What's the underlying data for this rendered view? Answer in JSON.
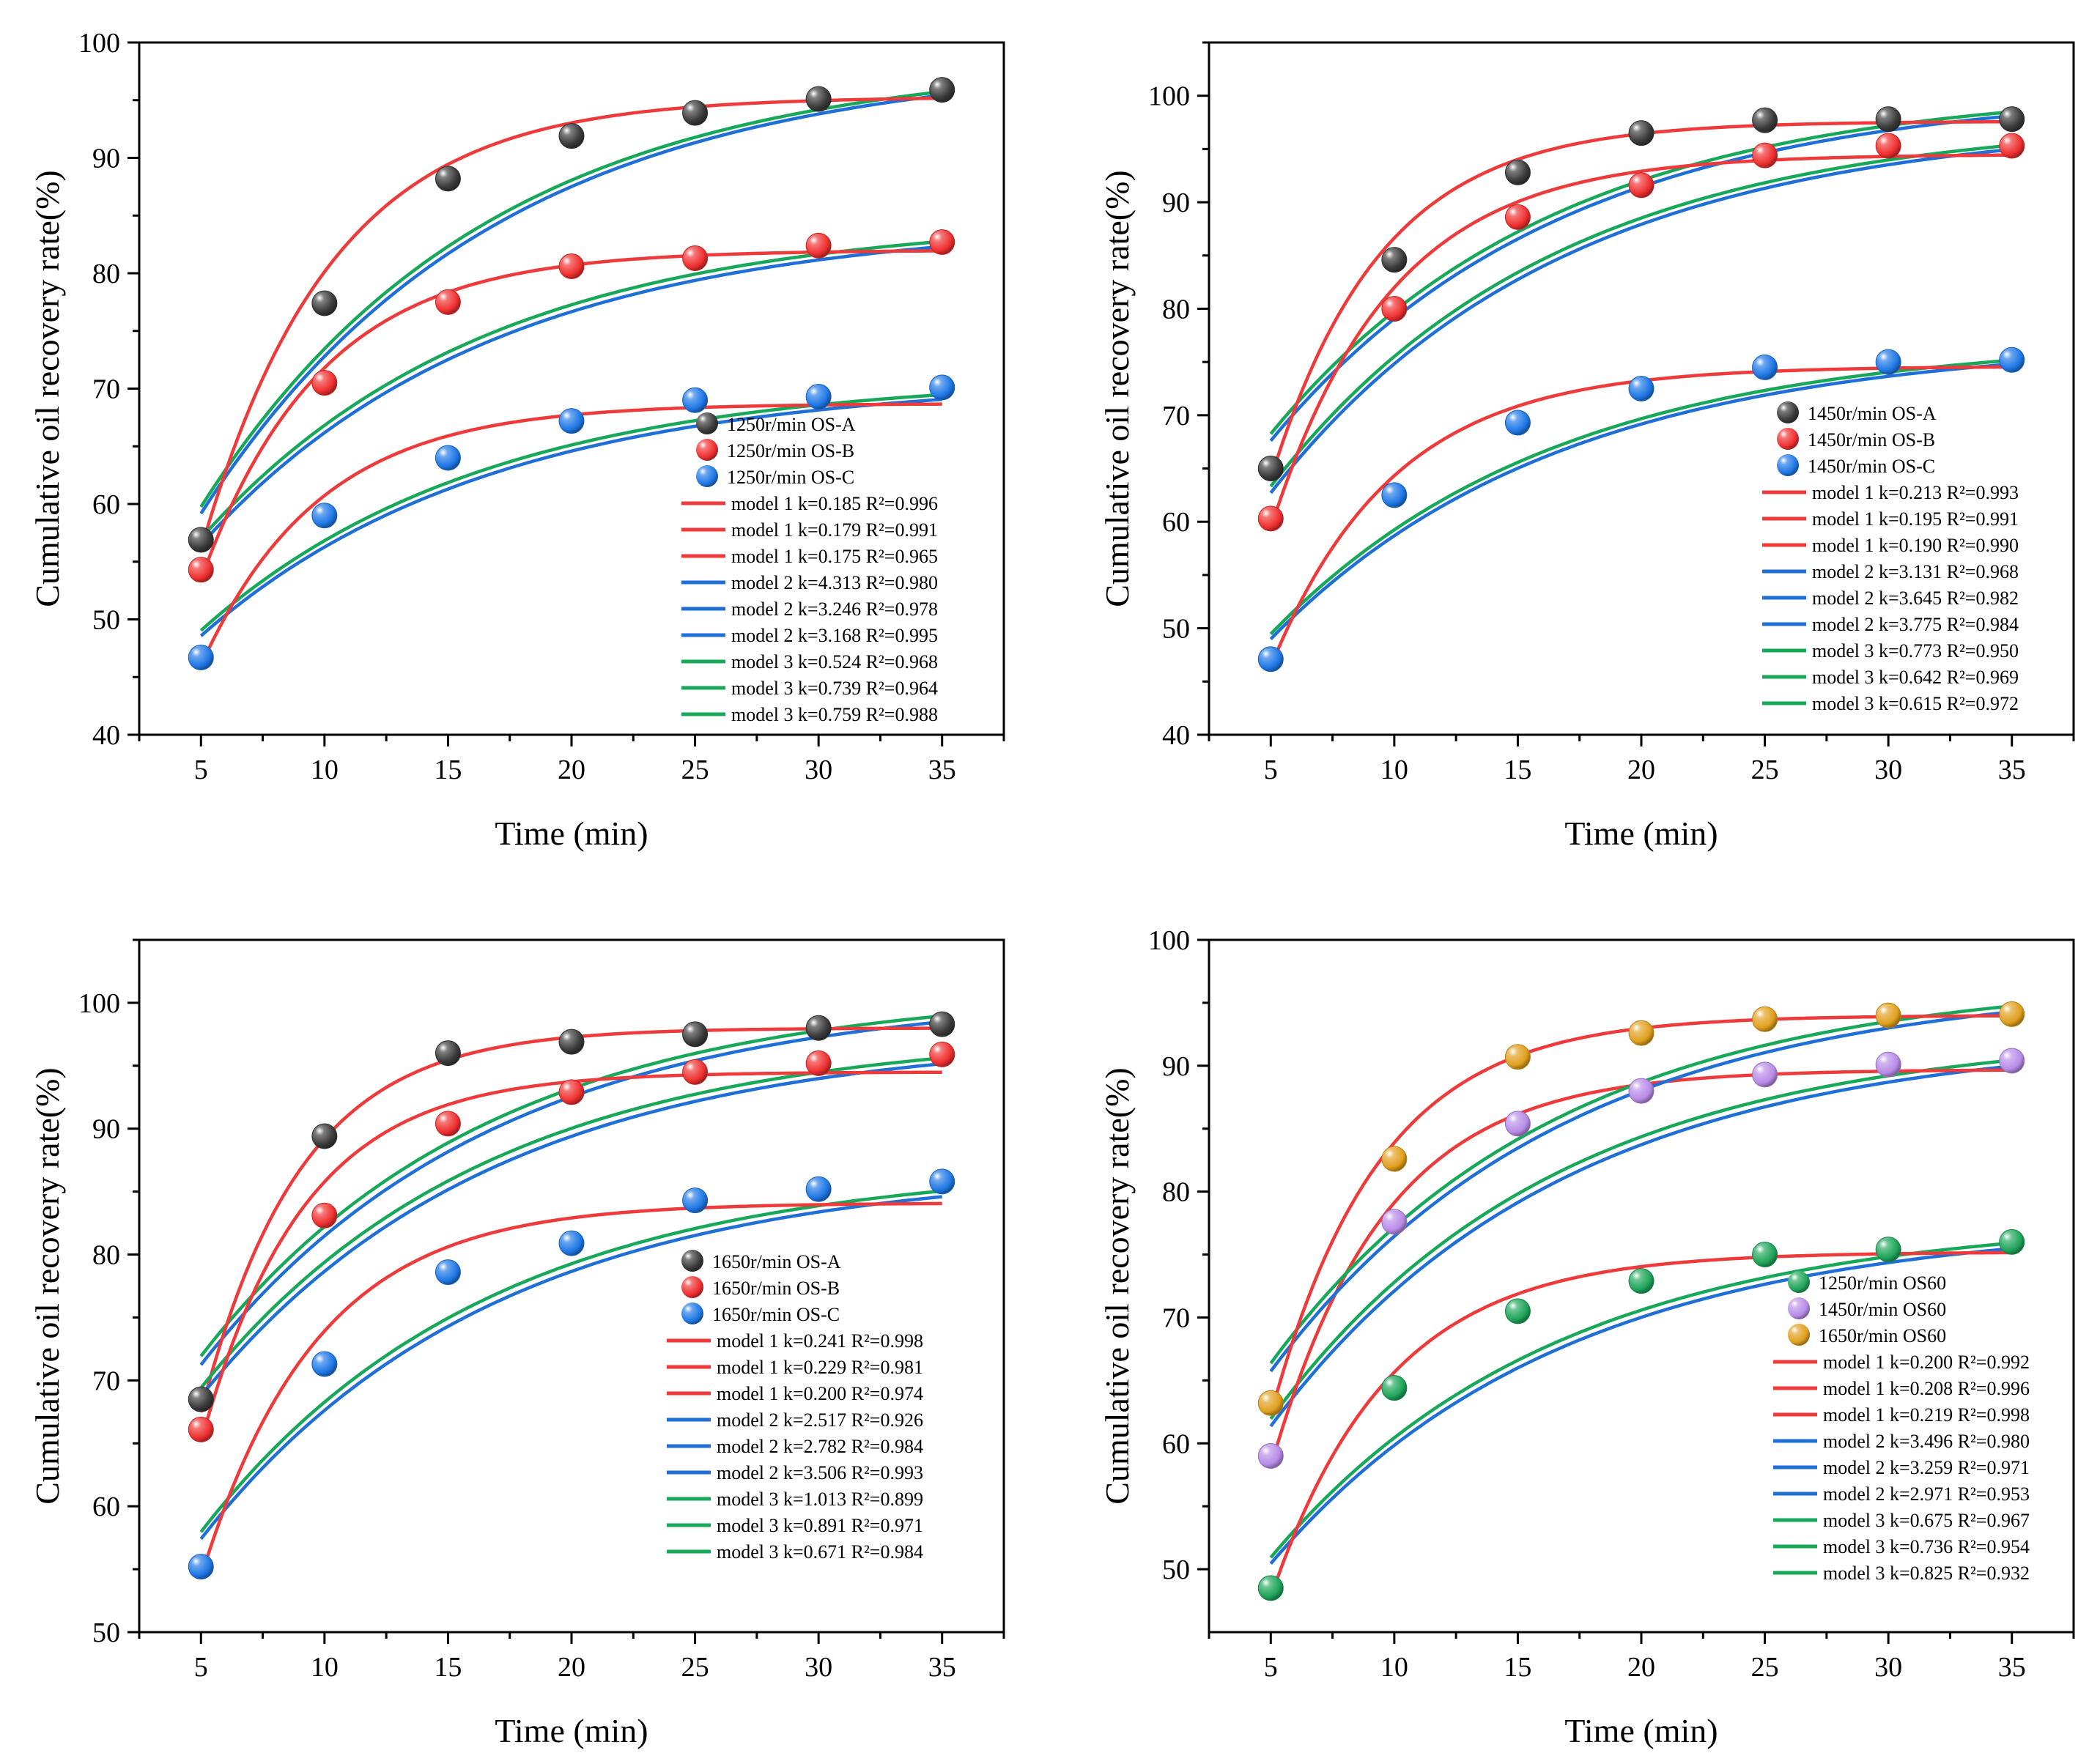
{
  "chart_data": [
    {
      "type": "scatter",
      "panel": "top-left",
      "xlabel": "Time (min)",
      "ylabel": "Cumulative oil recovery rate(%)",
      "xlim": [
        2.5,
        37.5
      ],
      "ylim": [
        40,
        100
      ],
      "xticks": [
        5,
        10,
        15,
        20,
        25,
        30,
        35
      ],
      "yticks": [
        40,
        50,
        60,
        70,
        80,
        90,
        100
      ],
      "x": [
        5,
        10,
        15,
        20,
        25,
        30,
        35
      ],
      "series": [
        {
          "name": "1250r/min  OS-A",
          "color": "#3a3a3a",
          "values": [
            56.9,
            77.4,
            88.2,
            91.9,
            93.9,
            95.1,
            95.9
          ],
          "fits": {
            "model1": [
              0.185,
              95.3
            ],
            "model2": [
              4.313,
              98.5
            ],
            "model3": [
              0.524,
              98.6
            ]
          }
        },
        {
          "name": "1250r/min  OS-B",
          "color": "#f03030",
          "values": [
            54.3,
            70.5,
            77.5,
            80.6,
            81.3,
            82.4,
            82.7
          ],
          "fits": {
            "model1": [
              0.179,
              82.0
            ],
            "model2": [
              3.246,
              84.5
            ],
            "model3": [
              0.739,
              84.8
            ]
          }
        },
        {
          "name": "1250r/min  OS-C",
          "color": "#1f78e6",
          "values": [
            46.7,
            59.0,
            64.0,
            67.2,
            69.0,
            69.3,
            70.1
          ],
          "fits": {
            "model1": [
              0.175,
              68.7
            ],
            "model2": [
              3.168,
              70.8
            ],
            "model3": [
              0.759,
              71.1
            ]
          }
        }
      ],
      "legend_position": "lower-right",
      "model_legend": [
        "model 1 k=0.185 R²=0.996",
        "model 1 k=0.179 R²=0.991",
        "model 1 k=0.175 R²=0.965",
        "model 2 k=4.313 R²=0.980",
        "model 2 k=3.246 R²=0.978",
        "model 2 k=3.168 R²=0.995",
        "model 3 k=0.524 R²=0.968",
        "model 3 k=0.739 R²=0.964",
        "model 3 k=0.759 R²=0.988"
      ]
    },
    {
      "type": "scatter",
      "panel": "top-right",
      "xlabel": "Time (min)",
      "ylabel": "Cumulative oil recovery rate(%)",
      "xlim": [
        2.5,
        37.5
      ],
      "ylim": [
        40,
        105
      ],
      "xticks": [
        5,
        10,
        15,
        20,
        25,
        30,
        35
      ],
      "yticks": [
        40,
        50,
        60,
        70,
        80,
        90,
        100
      ],
      "x": [
        5,
        10,
        15,
        20,
        25,
        30,
        35
      ],
      "series": [
        {
          "name": "1450r/min  OS-A",
          "color": "#3a3a3a",
          "values": [
            65.0,
            84.6,
            92.8,
            96.5,
            97.7,
            97.8,
            97.8
          ],
          "fits": {
            "model1": [
              0.213,
              97.6
            ],
            "model2": [
              3.131,
              100.7
            ],
            "model3": [
              0.773,
              100.9
            ]
          }
        },
        {
          "name": "1450r/min  OS-B",
          "color": "#f03030",
          "values": [
            60.3,
            80.0,
            88.6,
            91.6,
            94.4,
            95.3,
            95.3
          ],
          "fits": {
            "model1": [
              0.195,
              94.5
            ],
            "model2": [
              3.645,
              97.7
            ],
            "model3": [
              0.642,
              97.9
            ]
          }
        },
        {
          "name": "1450r/min  OS-C",
          "color": "#1f78e6",
          "values": [
            47.1,
            62.5,
            69.3,
            72.5,
            74.5,
            75.0,
            75.2
          ],
          "fits": {
            "model1": [
              0.19,
              74.6
            ],
            "model2": [
              3.775,
              77.0
            ],
            "model3": [
              0.615,
              77.2
            ]
          }
        }
      ],
      "legend_position": "lower-right",
      "model_legend": [
        "model 1 k=0.213 R²=0.993",
        "model 1 k=0.195 R²=0.991",
        "model 1 k=0.190 R²=0.990",
        "model 2 k=3.131 R²=0.968",
        "model 2 k=3.645 R²=0.982",
        "model 2 k=3.775 R²=0.984",
        "model 3 k=0.773 R²=0.950",
        "model 3 k=0.642 R²=0.969",
        "model 3 k=0.615 R²=0.972"
      ]
    },
    {
      "type": "scatter",
      "panel": "bottom-left",
      "xlabel": "Time (min)",
      "ylabel": "Cumulative oil recovery rate(%)",
      "xlim": [
        2.5,
        37.5
      ],
      "ylim": [
        50,
        105
      ],
      "xticks": [
        5,
        10,
        15,
        20,
        25,
        30,
        35
      ],
      "yticks": [
        50,
        60,
        70,
        80,
        90,
        100
      ],
      "x": [
        5,
        10,
        15,
        20,
        25,
        30,
        35
      ],
      "series": [
        {
          "name": "1650r/min  OS-A",
          "color": "#3a3a3a",
          "values": [
            68.5,
            89.4,
            96.0,
            96.9,
            97.5,
            98.0,
            98.3
          ],
          "fits": {
            "model1": [
              0.241,
              98.0
            ],
            "model2": [
              2.517,
              100.8
            ],
            "model3": [
              1.013,
              101.1
            ]
          }
        },
        {
          "name": "1650r/min  OS-B",
          "color": "#f03030",
          "values": [
            66.1,
            83.1,
            90.4,
            92.9,
            94.5,
            95.2,
            95.9
          ],
          "fits": {
            "model1": [
              0.229,
              94.5
            ],
            "model2": [
              2.782,
              97.4
            ],
            "model3": [
              0.891,
              97.7
            ]
          }
        },
        {
          "name": "1650r/min  OS-C",
          "color": "#1f78e6",
          "values": [
            55.2,
            71.3,
            78.6,
            80.9,
            84.3,
            85.2,
            85.8
          ],
          "fits": {
            "model1": [
              0.2,
              84.1
            ],
            "model2": [
              3.506,
              86.9
            ],
            "model3": [
              0.671,
              87.2
            ]
          }
        }
      ],
      "legend_position": "lower-right",
      "model_legend": [
        "model 1 k=0.241 R²=0.998",
        "model 1 k=0.229 R²=0.981",
        "model 1 k=0.200 R²=0.974",
        "model 2 k=2.517 R²=0.926",
        "model 2 k=2.782 R²=0.984",
        "model 2 k=3.506 R²=0.993",
        "model 3 k=1.013 R²=0.899",
        "model 3 k=0.891 R²=0.971",
        "model 3 k=0.671 R²=0.984"
      ]
    },
    {
      "type": "scatter",
      "panel": "bottom-right",
      "xlabel": "Time (min)",
      "ylabel": "Cumulative oil recovery rate(%)",
      "xlim": [
        2.5,
        37.5
      ],
      "ylim": [
        45,
        100
      ],
      "xticks": [
        5,
        10,
        15,
        20,
        25,
        30,
        35
      ],
      "yticks": [
        50,
        60,
        70,
        80,
        90,
        100
      ],
      "x": [
        5,
        10,
        15,
        20,
        25,
        30,
        35
      ],
      "series": [
        {
          "name": "1250r/min  OS60",
          "color": "#1fa55a",
          "values": [
            48.5,
            64.4,
            70.5,
            72.9,
            75.0,
            75.4,
            76.0
          ],
          "fits": {
            "model1": [
              0.2,
              75.2
            ],
            "model2": [
              2.971,
              77.6
            ],
            "model3": [
              0.825,
              77.9
            ]
          }
        },
        {
          "name": "1450r/min  OS60",
          "color": "#b98ce8",
          "values": [
            59.0,
            77.6,
            85.4,
            88.0,
            89.3,
            90.1,
            90.4
          ],
          "fits": {
            "model1": [
              0.208,
              89.7
            ],
            "model2": [
              3.259,
              92.4
            ],
            "model3": [
              0.736,
              92.7
            ]
          }
        },
        {
          "name": "1650r/min  OS60",
          "color": "#e1a01e",
          "values": [
            63.2,
            82.6,
            90.7,
            92.6,
            93.7,
            94.0,
            94.1
          ],
          "fits": {
            "model1": [
              0.219,
              94.0
            ],
            "model2": [
              3.496,
              96.7
            ],
            "model3": [
              0.675,
              97.0
            ]
          }
        }
      ],
      "legend_position": "lower-right",
      "model_legend": [
        "model 1 k=0.200 R²=0.992",
        "model 1 k=0.208 R²=0.996",
        "model 1 k=0.219 R²=0.998",
        "model 2 k=3.496 R²=0.980",
        "model 2 k=3.259 R²=0.971",
        "model 2 k=2.971 R²=0.953",
        "model 3 k=0.675 R²=0.967",
        "model 3 k=0.736 R²=0.954",
        "model 3 k=0.825 R²=0.932"
      ]
    }
  ],
  "colors": {
    "model1": "#ee3a3a",
    "model2": "#1f6fd6",
    "model3": "#18a85a",
    "axis": "#000000"
  }
}
